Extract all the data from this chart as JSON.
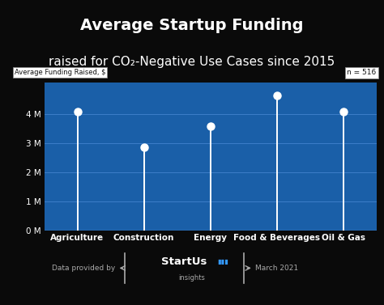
{
  "title_line1": "Average Startup Funding",
  "title_line2": "raised for CO₂-Negative Use Cases since 2015",
  "categories": [
    "Agriculture",
    "Construction",
    "Energy",
    "Food & Beverages",
    "Oil & Gas"
  ],
  "values": [
    4.1,
    2.85,
    3.6,
    4.65,
    4.1
  ],
  "ylabel": "Average Funding Raised, $",
  "n_label": "n = 516",
  "yticks": [
    0,
    1,
    2,
    3,
    4
  ],
  "ytick_labels": [
    "0 M",
    "1 M",
    "2 M",
    "3 M",
    "4 M"
  ],
  "ylim": [
    0,
    5.1
  ],
  "bg_color": "#1a5fa8",
  "outer_bg": "#0a0a0a",
  "line_color": "#ffffff",
  "text_color": "#ffffff",
  "grid_color": "#3d7dc8",
  "footer_text1": "Data provided by",
  "footer_date": "March 2021",
  "title_fontsize": 14,
  "subtitle_fontsize": 11,
  "tick_fontsize": 7.5
}
